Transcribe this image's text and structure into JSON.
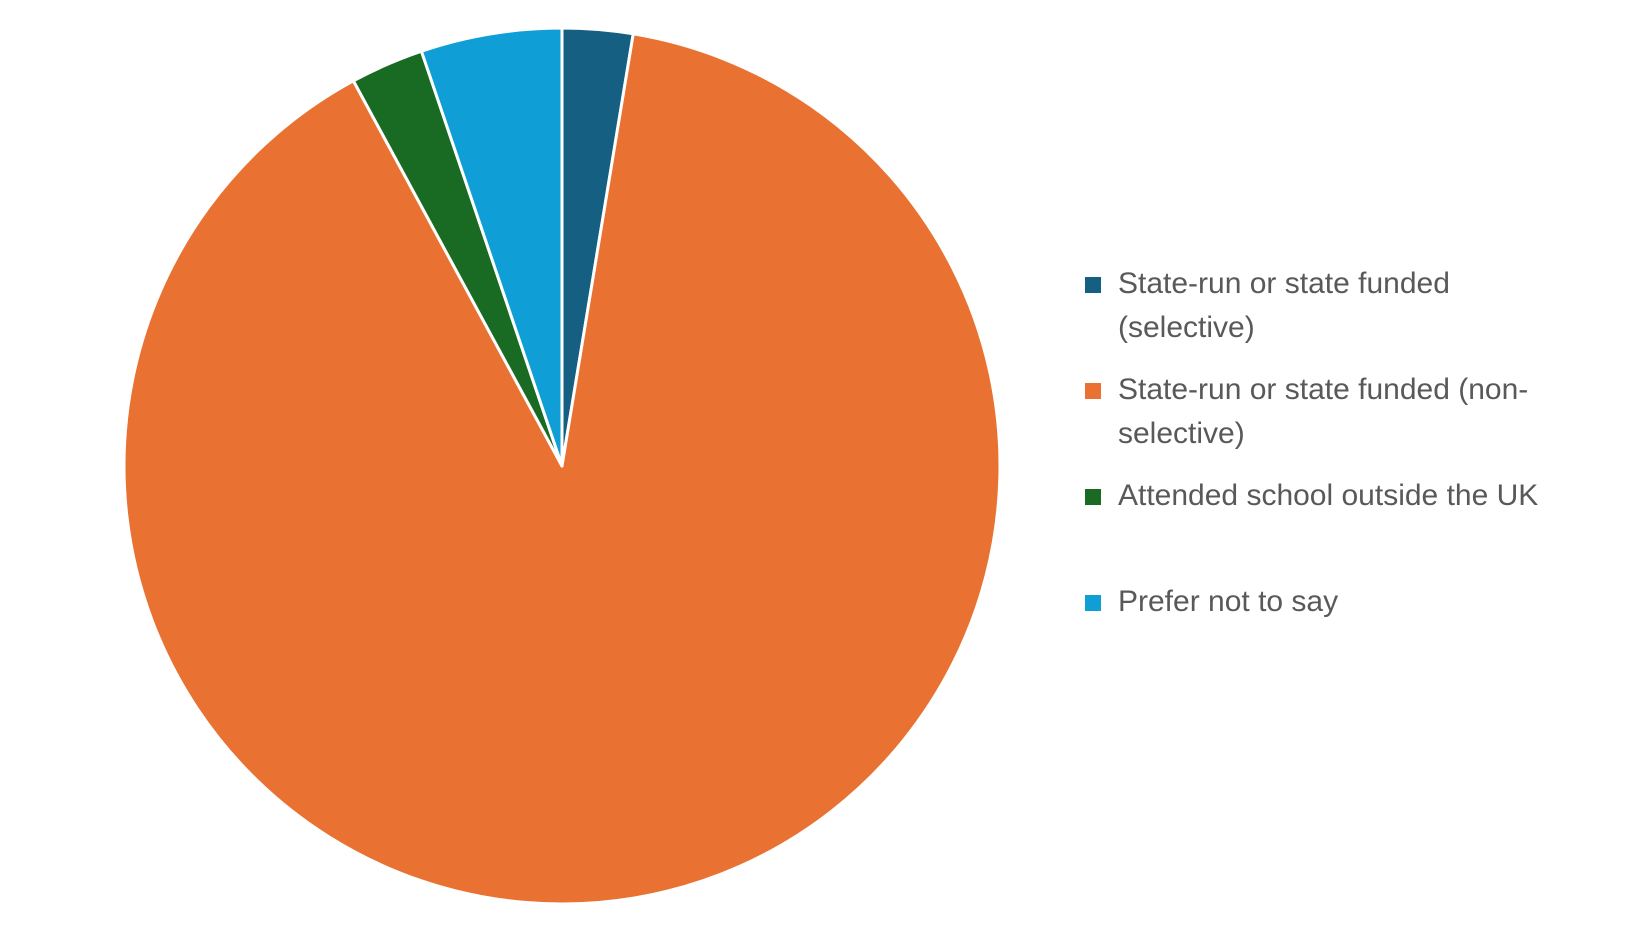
{
  "chart_data": {
    "type": "pie",
    "categories": [
      "State-run or state funded (selective)",
      "State-run or state funded (non-selective)",
      "Attended school outside the UK",
      "Prefer not to say"
    ],
    "values": [
      2.6,
      89.5,
      2.7,
      5.2
    ],
    "colors": [
      "#156082",
      "#e97132",
      "#196b24",
      "#0f9ed5"
    ],
    "legend": "right"
  }
}
